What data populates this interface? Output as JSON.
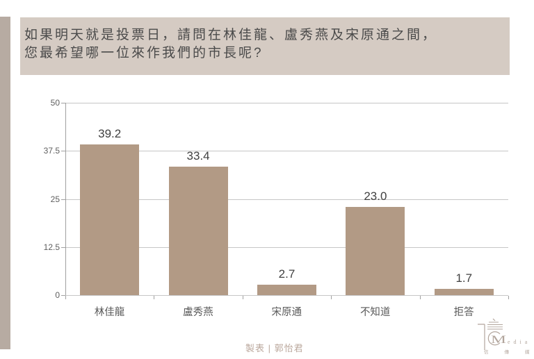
{
  "header": {
    "line1": "如果明天就是投票日，請問在林佳龍、盧秀燕及宋原通之間，",
    "line2": "您最希望哪一位來作我們的市長呢?"
  },
  "chart_data": {
    "type": "bar",
    "categories": [
      "林佳龍",
      "盧秀燕",
      "宋原通",
      "不知道",
      "拒答"
    ],
    "values": [
      39.2,
      33.4,
      2.7,
      23.0,
      1.7
    ],
    "value_labels": [
      "39.2",
      "33.4",
      "2.7",
      "23.0",
      "1.7"
    ],
    "yticks": [
      0,
      12.5,
      25,
      37.5,
      50
    ],
    "ytick_labels": [
      "0",
      "12.5",
      "25",
      "37.5",
      "50"
    ],
    "ylim": [
      0,
      50
    ],
    "bar_color": "#b29a85",
    "grid": true,
    "title": "",
    "xlabel": "",
    "ylabel": ""
  },
  "footer": {
    "credit": "製表 | 郭怡君",
    "logo": {
      "media_m": "M",
      "media_rest": "edia",
      "cjk": "信傳媒"
    }
  },
  "colors": {
    "accent_strip": "#b7aba2",
    "title_box_bg": "#d5cbc3",
    "bar": "#b29a85",
    "credit_text": "#bba89d"
  }
}
